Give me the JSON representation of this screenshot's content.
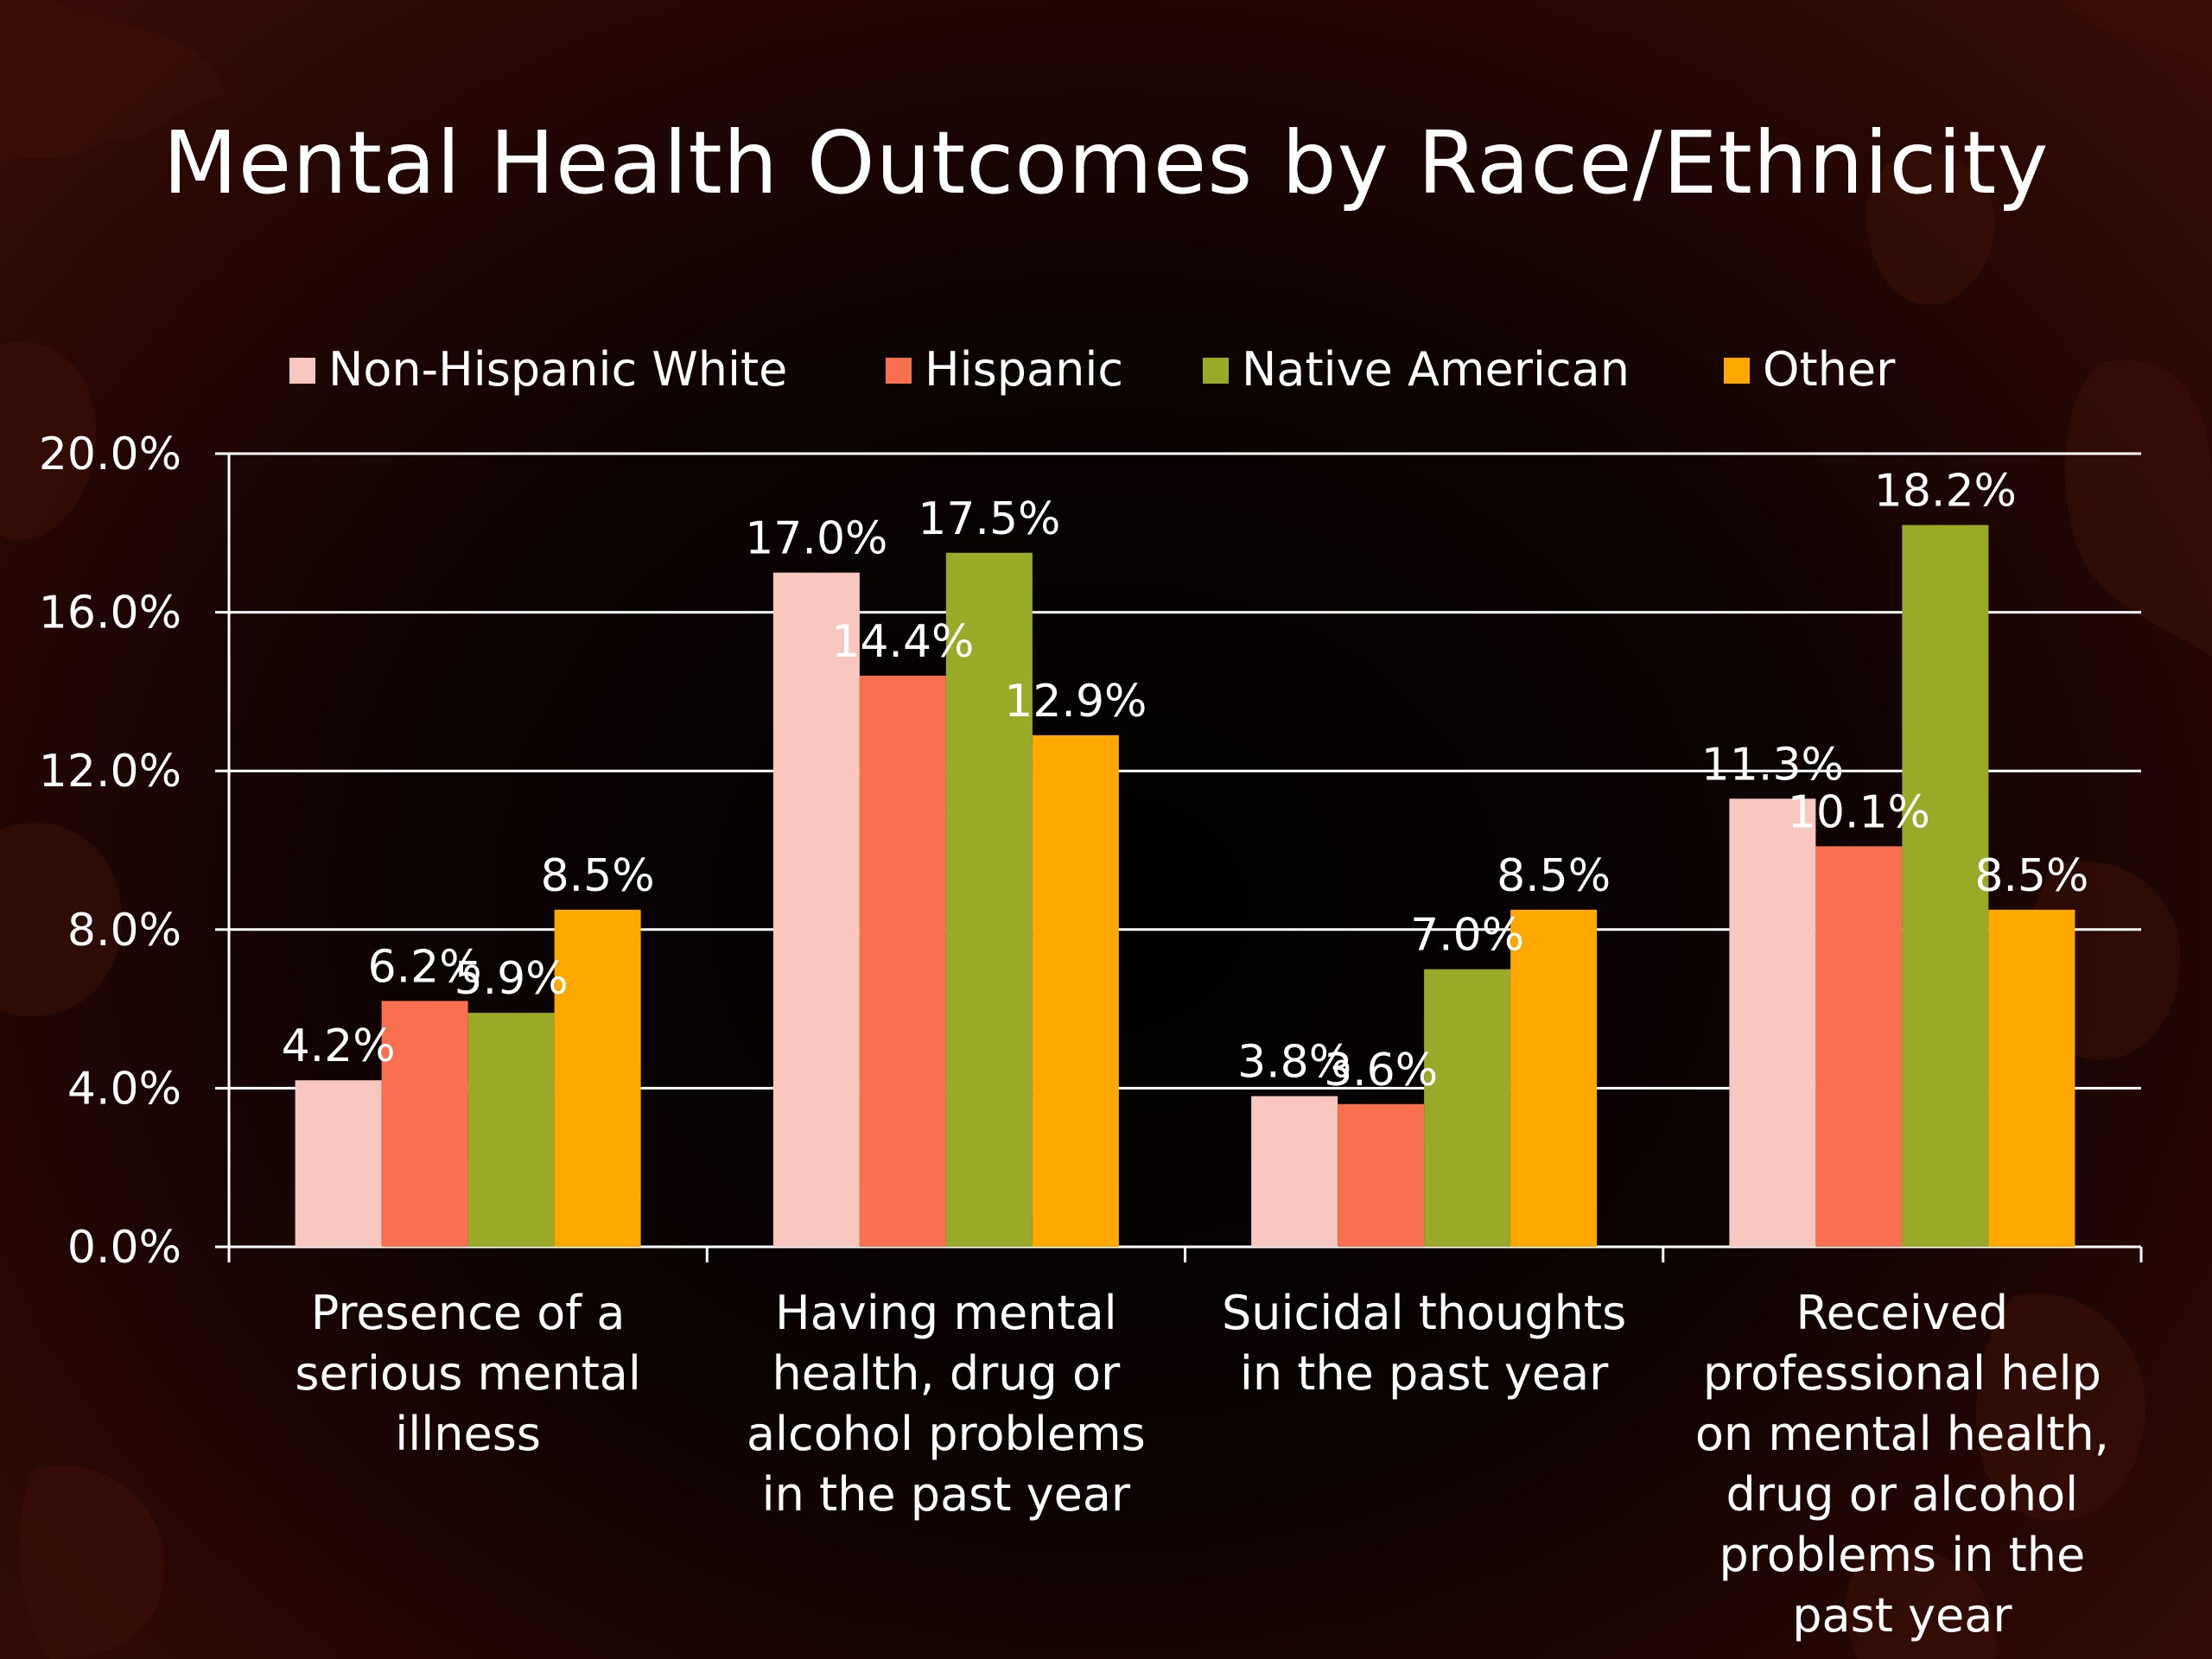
{
  "slide": {
    "title": "Mental Health Outcomes by Race/Ethnicity"
  },
  "colors": {
    "Non-Hispanic White": "#F8C8C0",
    "Hispanic": "#F87050",
    "Native American": "#9AAA28",
    "Other": "#FFA800"
  },
  "chart_data": {
    "type": "bar",
    "title": "Mental Health Outcomes by Race/Ethnicity",
    "xlabel": "",
    "ylabel": "",
    "ylim": [
      0,
      20
    ],
    "grid": true,
    "legend_position": "top",
    "y_tick_labels": [
      "0.0%",
      "4.0%",
      "8.0%",
      "12.0%",
      "16.0%",
      "20.0%"
    ],
    "categories": [
      "Presence of a serious mental illness",
      "Having mental health, drug or alcohol problems in the past year",
      "Suicidal thoughts in the past year",
      "Received professional help on mental health, drug or alcohol problems in the past year"
    ],
    "category_lines": [
      [
        "Presence of a",
        "serious mental",
        "illness"
      ],
      [
        "Having mental",
        "health, drug or",
        "alcohol problems",
        "in the past year"
      ],
      [
        "Suicidal thoughts",
        "in the past year"
      ],
      [
        "Received",
        "professional help",
        "on mental health,",
        "drug or alcohol",
        "problems in the",
        "past year"
      ]
    ],
    "series": [
      {
        "name": "Non-Hispanic White",
        "values": [
          4.2,
          17.0,
          3.8,
          11.3
        ],
        "labels": [
          "4.2%",
          "17.0%",
          "3.8%",
          "11.3%"
        ]
      },
      {
        "name": "Hispanic",
        "values": [
          6.2,
          14.4,
          3.6,
          10.1
        ],
        "labels": [
          "6.2%",
          "14.4%",
          "3.6%",
          "10.1%"
        ]
      },
      {
        "name": "Native American",
        "values": [
          5.9,
          17.5,
          7.0,
          18.2
        ],
        "labels": [
          "5.9%",
          "17.5%",
          "7.0%",
          "18.2%"
        ]
      },
      {
        "name": "Other",
        "values": [
          8.5,
          12.9,
          8.5,
          8.5
        ],
        "labels": [
          "8.5%",
          "12.9%",
          "8.5%",
          "8.5%"
        ]
      }
    ]
  }
}
